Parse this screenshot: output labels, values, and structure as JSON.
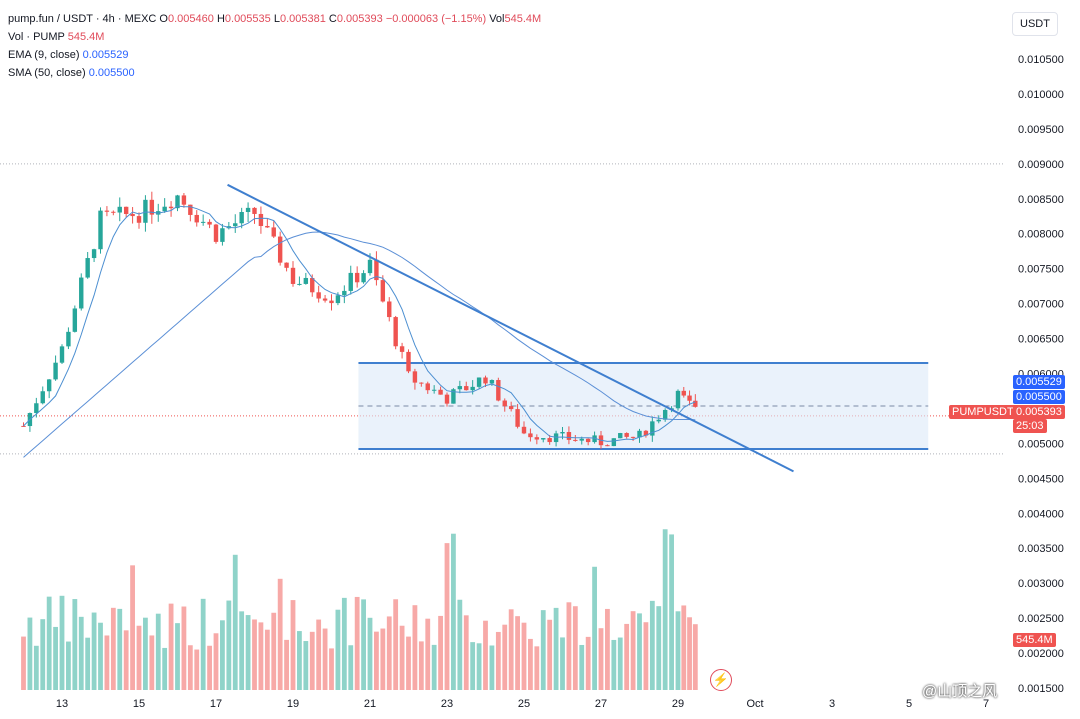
{
  "legend": {
    "symbol": "pump.fun / USDT · 4h · MEXC",
    "o_label": "O",
    "o": "0.005460",
    "h_label": "H",
    "h": "0.005535",
    "l_label": "L",
    "l": "0.005381",
    "c_label": "C",
    "c": "0.005393",
    "change": "−0.000063 (−1.15%)",
    "vol_label": "Vol",
    "vol": "545.4M",
    "vol_row_label": "Vol · PUMP",
    "vol_row_value": "545.4M",
    "ema_label": "EMA (9, close)",
    "ema_value": "0.005529",
    "sma_label": "SMA (50, close)",
    "sma_value": "0.005500"
  },
  "axis_unit": "USDT",
  "tags": {
    "ema": "0.005529",
    "sma": "0.005500",
    "symbol": "PUMPUSDT",
    "last": "0.005393",
    "countdown": "25:03",
    "volume": "545.4M"
  },
  "watermark": "@山顶之风",
  "colors": {
    "up": "#26a69a",
    "down": "#ef5350",
    "vol_up": "#8fd3c9",
    "vol_down": "#f7a9a7",
    "ema": "#4c8fd1",
    "sma": "#5b8fd6",
    "box": "#dceaf9",
    "trend": "#3f7fcf"
  },
  "chart_data": {
    "type": "candlestick",
    "timeframe": "4h",
    "y_ticks": [
      "0.010500",
      "0.010000",
      "0.009500",
      "0.009000",
      "0.008500",
      "0.008000",
      "0.007500",
      "0.007000",
      "0.006500",
      "0.006000",
      "0.005500",
      "0.005000",
      "0.004500",
      "0.004000",
      "0.003500",
      "0.003000",
      "0.002500",
      "0.002000",
      "0.001500"
    ],
    "x_ticks": [
      "13",
      "15",
      "17",
      "19",
      "21",
      "23",
      "25",
      "27",
      "29",
      "Oct",
      "3",
      "5",
      "7"
    ],
    "ylim": [
      0.00145,
      0.0109
    ],
    "key_points": [
      {
        "t": "12",
        "close": 0.00525
      },
      {
        "t": "13",
        "close": 0.00635
      },
      {
        "t": "14",
        "close": 0.0082
      },
      {
        "t": "15",
        "close": 0.0083
      },
      {
        "t": "16",
        "close": 0.00855
      },
      {
        "t": "17",
        "close": 0.008
      },
      {
        "t": "18",
        "close": 0.0083
      },
      {
        "t": "19",
        "close": 0.00735
      },
      {
        "t": "20",
        "close": 0.0071
      },
      {
        "t": "21",
        "close": 0.00755
      },
      {
        "t": "22",
        "close": 0.00595
      },
      {
        "t": "23",
        "close": 0.00565
      },
      {
        "t": "24",
        "close": 0.00595
      },
      {
        "t": "25",
        "close": 0.00515
      },
      {
        "t": "26",
        "close": 0.00508
      },
      {
        "t": "27",
        "close": 0.00502
      },
      {
        "t": "28",
        "close": 0.0051
      },
      {
        "t": "29",
        "close": 0.0057
      },
      {
        "t": "29.6",
        "close": 0.00539
      }
    ],
    "range_box": {
      "top": 0.00615,
      "bottom": 0.00492,
      "from": "20.7",
      "to": "Oct 5.5"
    },
    "trendline": {
      "from": {
        "t": "17.3",
        "price": 0.0087
      },
      "to": {
        "t": "Oct 2",
        "price": 0.0046
      }
    },
    "last_price": 0.005393,
    "ema": 0.005529,
    "sma": 0.0055
  }
}
